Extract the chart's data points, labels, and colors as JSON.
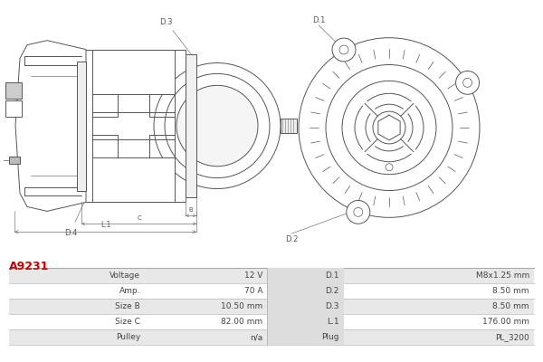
{
  "title_code": "A9231",
  "title_color": "#cc0000",
  "bg_color": "#ffffff",
  "table_rows": [
    [
      "Voltage",
      "12 V",
      "D.1",
      "M8x1.25 mm"
    ],
    [
      "Amp.",
      "70 A",
      "D.2",
      "8.50 mm"
    ],
    [
      "Size B",
      "10.50 mm",
      "D.3",
      "8.50 mm"
    ],
    [
      "Size C",
      "82.00 mm",
      "L.1",
      "176.00 mm"
    ],
    [
      "Pulley",
      "n/a",
      "Plug",
      "PL_3200"
    ]
  ],
  "row_colors": [
    "#e8e8e8",
    "#ffffff",
    "#e8e8e8",
    "#ffffff",
    "#e8e8e8"
  ],
  "draw_color": "#555555",
  "dim_color": "#777777"
}
